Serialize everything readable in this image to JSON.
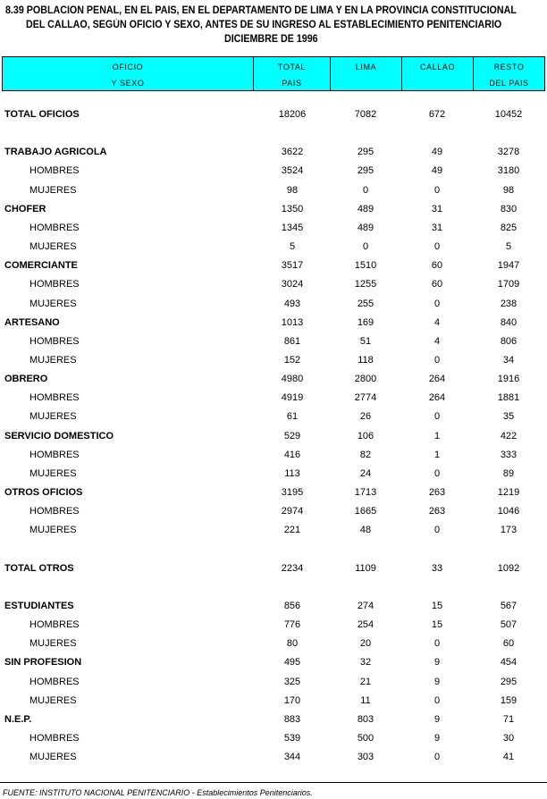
{
  "title": {
    "line1": "8.39 POBLACION PENAL, EN EL PAIS, EN EL DEPARTAMENTO DE LIMA Y EN LA PROVINCIA CONSTITUCIONAL",
    "line2": "DEL CALLAO, SEGÚN OFICIO Y SEXO, ANTES DE SU INGRESO AL ESTABLECIMIENTO PENITENCIARIO",
    "line3": "DICIEMBRE DE 1996"
  },
  "header_color": "#00ffff",
  "columns": [
    {
      "line1": "OFICIO",
      "line2": "Y SEXO"
    },
    {
      "line1": "TOTAL",
      "line2": "PAIS"
    },
    {
      "line1": "LIMA",
      "line2": ""
    },
    {
      "line1": "CALLAO",
      "line2": ""
    },
    {
      "line1": "RESTO",
      "line2": "DEL PAIS"
    }
  ],
  "rows": [
    {
      "kind": "total",
      "label": "TOTAL OFICIOS",
      "values": [
        "18206",
        "7082",
        "672",
        "10452"
      ]
    },
    {
      "kind": "group",
      "label": "TRABAJO AGRICOLA",
      "values": [
        "3622",
        "295",
        "49",
        "3278"
      ]
    },
    {
      "kind": "sub",
      "label": "HOMBRES",
      "values": [
        "3524",
        "295",
        "49",
        "3180"
      ]
    },
    {
      "kind": "sub",
      "label": "MUJERES",
      "values": [
        "98",
        "0",
        "0",
        "98"
      ]
    },
    {
      "kind": "group",
      "label": "CHOFER",
      "values": [
        "1350",
        "489",
        "31",
        "830"
      ]
    },
    {
      "kind": "sub",
      "label": "HOMBRES",
      "values": [
        "1345",
        "489",
        "31",
        "825"
      ]
    },
    {
      "kind": "sub",
      "label": "MUJERES",
      "values": [
        "5",
        "0",
        "0",
        "5"
      ]
    },
    {
      "kind": "group",
      "label": "COMERCIANTE",
      "values": [
        "3517",
        "1510",
        "60",
        "1947"
      ]
    },
    {
      "kind": "sub",
      "label": "HOMBRES",
      "values": [
        "3024",
        "1255",
        "60",
        "1709"
      ]
    },
    {
      "kind": "sub",
      "label": "MUJERES",
      "values": [
        "493",
        "255",
        "0",
        "238"
      ]
    },
    {
      "kind": "group",
      "label": "ARTESANO",
      "values": [
        "1013",
        "169",
        "4",
        "840"
      ]
    },
    {
      "kind": "sub",
      "label": "HOMBRES",
      "values": [
        "861",
        "51",
        "4",
        "806"
      ]
    },
    {
      "kind": "sub",
      "label": "MUJERES",
      "values": [
        "152",
        "118",
        "0",
        "34"
      ]
    },
    {
      "kind": "group",
      "label": "OBRERO",
      "values": [
        "4980",
        "2800",
        "264",
        "1916"
      ]
    },
    {
      "kind": "sub",
      "label": "HOMBRES",
      "values": [
        "4919",
        "2774",
        "264",
        "1881"
      ]
    },
    {
      "kind": "sub",
      "label": "MUJERES",
      "values": [
        "61",
        "26",
        "0",
        "35"
      ]
    },
    {
      "kind": "group",
      "label": "SERVICIO DOMESTICO",
      "values": [
        "529",
        "106",
        "1",
        "422"
      ]
    },
    {
      "kind": "sub",
      "label": "HOMBRES",
      "values": [
        "416",
        "82",
        "1",
        "333"
      ]
    },
    {
      "kind": "sub",
      "label": "MUJERES",
      "values": [
        "113",
        "24",
        "0",
        "89"
      ]
    },
    {
      "kind": "group",
      "label": "OTROS OFICIOS",
      "values": [
        "3195",
        "1713",
        "263",
        "1219"
      ]
    },
    {
      "kind": "sub",
      "label": "HOMBRES",
      "values": [
        "2974",
        "1665",
        "263",
        "1046"
      ]
    },
    {
      "kind": "sub",
      "label": "MUJERES",
      "values": [
        "221",
        "48",
        "0",
        "173"
      ]
    },
    {
      "kind": "total",
      "label": "TOTAL OTROS",
      "values": [
        "2234",
        "1109",
        "33",
        "1092"
      ]
    },
    {
      "kind": "group",
      "label": "ESTUDIANTES",
      "values": [
        "856",
        "274",
        "15",
        "567"
      ]
    },
    {
      "kind": "sub",
      "label": "HOMBRES",
      "values": [
        "776",
        "254",
        "15",
        "507"
      ]
    },
    {
      "kind": "sub",
      "label": "MUJERES",
      "values": [
        "80",
        "20",
        "0",
        "60"
      ]
    },
    {
      "kind": "group",
      "label": "SIN PROFESION",
      "values": [
        "495",
        "32",
        "9",
        "454"
      ]
    },
    {
      "kind": "sub",
      "label": "HOMBRES",
      "values": [
        "325",
        "21",
        "9",
        "295"
      ]
    },
    {
      "kind": "sub",
      "label": "MUJERES",
      "values": [
        "170",
        "11",
        "0",
        "159"
      ]
    },
    {
      "kind": "group",
      "label": "N.E.P.",
      "values": [
        "883",
        "803",
        "9",
        "71"
      ]
    },
    {
      "kind": "sub",
      "label": "HOMBRES",
      "values": [
        "539",
        "500",
        "9",
        "30"
      ]
    },
    {
      "kind": "sub",
      "label": "MUJERES",
      "values": [
        "344",
        "303",
        "0",
        "41"
      ]
    }
  ],
  "footer": "FUENTE: INSTITUTO NACIONAL PENITENCIARIO - Establecimientos Penitenciarios."
}
